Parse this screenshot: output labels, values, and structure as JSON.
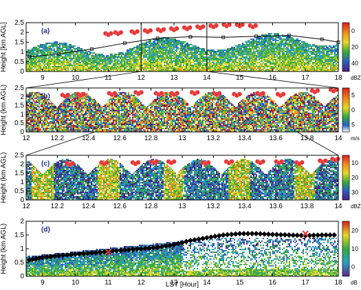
{
  "chart_data": [
    {
      "panel": "(a)",
      "type": "heatmap",
      "ylabel": "Height [km AGL]",
      "xlim": [
        8.5,
        18
      ],
      "ylim": [
        0,
        2.5
      ],
      "xticks": [
        "9",
        "10",
        "11",
        "12",
        "13",
        "14",
        "15",
        "16",
        "17",
        "18"
      ],
      "yticks": [
        "0",
        "0.5",
        "1",
        "1.5",
        "2",
        "2.5"
      ],
      "colorbar": {
        "ticks": [
          "0",
          "20",
          "40"
        ],
        "unit": "dBZ",
        "range": [
          0,
          45
        ]
      },
      "cloud_base_markers": {
        "color": "#e53535",
        "points": [
          [
            11.0,
            1.95
          ],
          [
            11.3,
            2.0
          ],
          [
            11.8,
            2.05
          ],
          [
            12.2,
            2.1
          ],
          [
            12.6,
            2.15
          ],
          [
            13.0,
            2.2
          ],
          [
            13.4,
            2.25
          ],
          [
            13.8,
            2.3
          ],
          [
            14.2,
            2.35
          ],
          [
            14.6,
            2.4
          ],
          [
            15.0,
            2.4
          ],
          [
            15.4,
            2.35
          ]
        ]
      },
      "mixing_layer_line": {
        "color": "#000000",
        "points": [
          [
            8.6,
            0.75
          ],
          [
            9.5,
            0.9
          ],
          [
            10.5,
            1.15
          ],
          [
            11.5,
            1.45
          ],
          [
            12.5,
            1.7
          ],
          [
            13.5,
            1.78
          ],
          [
            14.5,
            1.75
          ],
          [
            15.5,
            1.8
          ],
          [
            16.5,
            1.85
          ],
          [
            17.5,
            1.65
          ],
          [
            18,
            1.5
          ]
        ]
      }
    },
    {
      "panel": "(b)",
      "type": "heatmap",
      "ylabel": "Height (km AGL)",
      "xlim": [
        12,
        14
      ],
      "ylim": [
        0,
        2.5
      ],
      "xticks": [
        "12",
        "12.2",
        "12.4",
        "12.6",
        "12.8",
        "13",
        "13.2",
        "13.4",
        "13.6",
        "13.8",
        "14"
      ],
      "yticks": [
        "0",
        "0.5",
        "1",
        "1.5",
        "2",
        "2.5"
      ],
      "colorbar": {
        "ticks": [
          "5",
          "0",
          "5"
        ],
        "unit": "m/s",
        "range": [
          -5,
          5
        ]
      },
      "cloud_base_markers": {
        "color": "#e53535",
        "points": [
          [
            12.25,
            2.1
          ],
          [
            12.35,
            2.15
          ],
          [
            12.55,
            2.2
          ],
          [
            12.72,
            2.25
          ],
          [
            12.85,
            2.2
          ],
          [
            12.95,
            2.2
          ],
          [
            13.08,
            2.25
          ],
          [
            13.22,
            2.2
          ],
          [
            13.35,
            2.15
          ],
          [
            13.5,
            2.2
          ],
          [
            13.63,
            2.15
          ],
          [
            13.85,
            2.35
          ],
          [
            13.97,
            2.4
          ]
        ]
      }
    },
    {
      "panel": "(c)",
      "type": "heatmap",
      "ylabel": "Height (km AGL)",
      "xlim": [
        12,
        14
      ],
      "ylim": [
        0,
        2.5
      ],
      "xticks": [
        "12",
        "12.2",
        "12.4",
        "12.6",
        "12.8",
        "13",
        "13.2",
        "13.4",
        "13.6",
        "13.8",
        "14"
      ],
      "yticks": [
        "0",
        "0.5",
        "1",
        "1.5",
        "2",
        "2.5"
      ],
      "colorbar": {
        "ticks": [
          "10",
          "20",
          "30"
        ],
        "unit": "dBZ",
        "range": [
          5,
          35
        ]
      },
      "cloud_base_markers": {
        "color": "#e53535",
        "points": [
          [
            12.28,
            2.05
          ],
          [
            12.5,
            2.1
          ],
          [
            12.7,
            2.1
          ],
          [
            12.82,
            2.15
          ],
          [
            12.93,
            2.15
          ],
          [
            13.15,
            2.1
          ],
          [
            13.3,
            2.15
          ],
          [
            13.5,
            2.15
          ],
          [
            13.62,
            2.15
          ],
          [
            13.75,
            2.1
          ],
          [
            13.9,
            2.2
          ],
          [
            13.98,
            2.3
          ]
        ]
      }
    },
    {
      "panel": "(d)",
      "type": "heatmap",
      "ylabel": "Height (km AGL)",
      "xlabel": "LST [Hour]",
      "xlim": [
        8.5,
        18
      ],
      "ylim": [
        0,
        2
      ],
      "xticks": [
        "9",
        "10",
        "11",
        "12",
        "13",
        "14",
        "15",
        "16",
        "17",
        "18"
      ],
      "yticks": [
        "0",
        "0.5",
        "1",
        "1.5",
        "2"
      ],
      "colorbar": {
        "ticks": [
          "20",
          "10",
          "0"
        ],
        "unit": "dB",
        "range": [
          -5,
          20
        ]
      },
      "boundary_markers": {
        "color": "#000000",
        "points": [
          [
            8.6,
            0.6
          ],
          [
            9.0,
            0.68
          ],
          [
            9.5,
            0.75
          ],
          [
            10.0,
            0.8
          ],
          [
            10.5,
            0.85
          ],
          [
            11.0,
            0.9
          ],
          [
            11.5,
            0.95
          ],
          [
            12.0,
            1.0
          ],
          [
            12.5,
            1.05
          ],
          [
            13.0,
            1.15
          ],
          [
            13.5,
            1.3
          ],
          [
            14.0,
            1.4
          ],
          [
            14.5,
            1.5
          ],
          [
            15.0,
            1.55
          ],
          [
            15.5,
            1.55
          ],
          [
            16.0,
            1.52
          ],
          [
            16.5,
            1.5
          ],
          [
            17.0,
            1.48
          ],
          [
            17.5,
            1.5
          ],
          [
            18.0,
            1.5
          ]
        ]
      },
      "x_markers": {
        "color": "#e53535",
        "points": [
          [
            11.0,
            0.88
          ],
          [
            17.0,
            1.55
          ]
        ]
      }
    }
  ]
}
